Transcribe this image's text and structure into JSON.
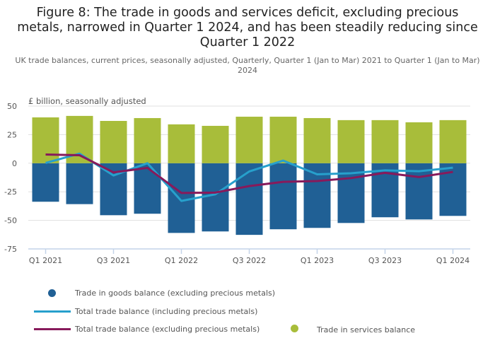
{
  "chart_data": {
    "type": "bar",
    "title": "Figure 8: The trade in goods and services deficit, excluding precious metals, narrowed in Quarter 1 2024, and has been steadily reducing since Quarter 1 2022",
    "subtitle": "UK trade balances, current prices, seasonally adjusted, Quarterly, Quarter 1 (Jan to Mar) 2021 to Quarter 1 (Jan to Mar) 2024",
    "ylabel": "£ billion, seasonally adjusted",
    "ylim": [
      -75,
      50
    ],
    "yticks": [
      "50",
      "25",
      "0",
      "-25",
      "-50",
      "-75"
    ],
    "grid": true,
    "stacked": true,
    "categories": [
      "Q1 2021",
      "Q2 2021",
      "Q3 2021",
      "Q4 2021",
      "Q1 2022",
      "Q2 2022",
      "Q3 2022",
      "Q4 2022",
      "Q1 2023",
      "Q2 2023",
      "Q3 2023",
      "Q4 2023",
      "Q1 2024"
    ],
    "xtick_labels": [
      "Q1 2021",
      "Q3 2021",
      "Q1 2022",
      "Q3 2022",
      "Q1 2023",
      "Q3 2023",
      "Q1 2024"
    ],
    "legend_placement": "bottom",
    "series": [
      {
        "name": "Trade in goods balance (excluding precious metals)",
        "kind": "bar",
        "color": "#206095",
        "values": [
          -33.7,
          -35.8,
          -45.5,
          -44.2,
          -61.0,
          -59.7,
          -62.7,
          -57.8,
          -56.6,
          -52.3,
          -47.3,
          -49.2,
          -46.1
        ]
      },
      {
        "name": "Trade in services balance",
        "kind": "bar",
        "color": "#a8bd3a",
        "values": [
          40.1,
          41.4,
          37.0,
          39.5,
          34.0,
          32.7,
          40.7,
          40.7,
          39.5,
          37.7,
          37.7,
          35.8,
          37.7
        ]
      },
      {
        "name": "Total trade balance (including precious metals)",
        "kind": "line",
        "color": "#27a0cc",
        "values": [
          0.2,
          8.4,
          -10.7,
          0.0,
          -33.0,
          -27.2,
          -7.2,
          2.3,
          -9.7,
          -8.8,
          -6.2,
          -7.0,
          -3.9
        ]
      },
      {
        "name": "Total trade balance (excluding precious metals)",
        "kind": "line",
        "color": "#871a5b",
        "values": [
          7.6,
          7.0,
          -8.0,
          -4.1,
          -26.0,
          -25.7,
          -20.0,
          -16.3,
          -15.6,
          -13.0,
          -8.4,
          -12.1,
          -7.6
        ]
      }
    ]
  }
}
